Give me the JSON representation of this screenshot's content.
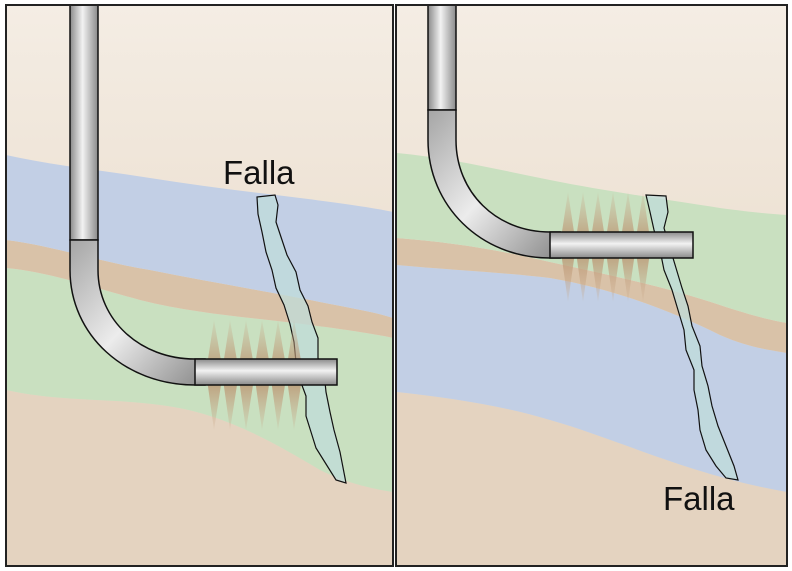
{
  "panels": [
    {
      "fault_label": "Falla"
    },
    {
      "fault_label": "Falla"
    }
  ],
  "colors": {
    "sky_top": "#f3ebe1",
    "sky_bottom": "#e6d6c2",
    "blue_layer": "#c2cfe5",
    "tan_layer": "#d9c2a8",
    "green_layer": "#c9e0c0",
    "bottom_layer": "#e4d3c0",
    "fault_fill": "#bfdcd9",
    "perforation": "#c9a98a",
    "frame": "#222222"
  }
}
